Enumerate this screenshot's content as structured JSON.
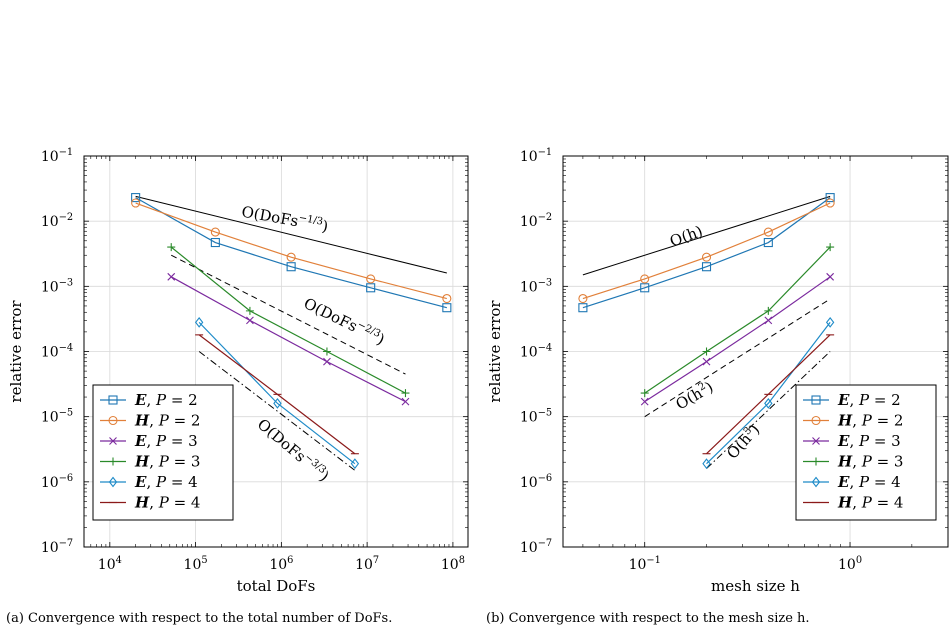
{
  "chart_data": [
    {
      "panel": "(a)",
      "type": "line",
      "xlabel": "total DoFs",
      "ylabel": "relative error",
      "xscale": "log",
      "yscale": "log",
      "xlim": [
        5000,
        150000000
      ],
      "ylim": [
        1e-07,
        0.1
      ],
      "xticks": [
        {
          "v": 10000.0,
          "b": "10",
          "e": "4"
        },
        {
          "v": 100000.0,
          "b": "10",
          "e": "5"
        },
        {
          "v": 1000000.0,
          "b": "10",
          "e": "6"
        },
        {
          "v": 10000000.0,
          "b": "10",
          "e": "7"
        },
        {
          "v": 100000000.0,
          "b": "10",
          "e": "8"
        }
      ],
      "yticks": [
        {
          "v": 1e-07,
          "b": "10",
          "e": "−7"
        },
        {
          "v": 1e-06,
          "b": "10",
          "e": "−6"
        },
        {
          "v": 1e-05,
          "b": "10",
          "e": "−5"
        },
        {
          "v": 0.0001,
          "b": "10",
          "e": "−4"
        },
        {
          "v": 0.001,
          "b": "10",
          "e": "−3"
        },
        {
          "v": 0.01,
          "b": "10",
          "e": "−2"
        },
        {
          "v": 0.1,
          "b": "10",
          "e": "−1"
        }
      ],
      "grid": true,
      "legend_position": "bottom-left",
      "series": [
        {
          "name": "E, P = 2",
          "field": "E",
          "p": "2",
          "color": "#1f77b4",
          "marker": "square",
          "x": [
            20000,
            170000,
            1300000,
            11000000,
            85000000
          ],
          "y": [
            0.023,
            0.0047,
            0.002,
            0.00095,
            0.00047
          ]
        },
        {
          "name": "H, P = 2",
          "field": "H",
          "p": "2",
          "color": "#e1803a",
          "marker": "circle",
          "x": [
            20000,
            170000,
            1300000,
            11000000,
            85000000
          ],
          "y": [
            0.019,
            0.0068,
            0.0028,
            0.0013,
            0.00065
          ]
        },
        {
          "name": "E, P = 3",
          "field": "E",
          "p": "3",
          "color": "#7b2a9e",
          "marker": "x",
          "x": [
            52000,
            430000,
            3400000,
            28000000
          ],
          "y": [
            0.0014,
            0.0003,
            7e-05,
            1.7e-05
          ]
        },
        {
          "name": "H, P = 3",
          "field": "H",
          "p": "3",
          "color": "#2a8a2a",
          "marker": "plus",
          "x": [
            52000,
            430000,
            3400000,
            28000000
          ],
          "y": [
            0.004,
            0.00042,
            0.0001,
            2.3e-05
          ]
        },
        {
          "name": "E, P = 4",
          "field": "E",
          "p": "4",
          "color": "#1f8bc8",
          "marker": "diamond",
          "x": [
            110000,
            900000,
            7200000
          ],
          "y": [
            0.00028,
            1.6e-05,
            1.9e-06
          ]
        },
        {
          "name": "H, P = 4",
          "field": "H",
          "p": "4",
          "color": "#8b1a1a",
          "marker": "dash",
          "x": [
            110000,
            900000,
            7200000
          ],
          "y": [
            0.00018,
            2.2e-05,
            2.7e-06
          ]
        }
      ],
      "reference_lines": [
        {
          "label": "O(DoFs^-1/3)",
          "style": "solid",
          "x": [
            20000,
            85000000
          ],
          "y": [
            0.024,
            0.0016
          ]
        },
        {
          "label": "O(DoFs^-2/3)",
          "style": "dashed",
          "x": [
            52000,
            28000000
          ],
          "y": [
            0.003,
            4.5e-05
          ]
        },
        {
          "label": "O(DoFs^-3/3)",
          "style": "dashdot",
          "x": [
            110000,
            7200000
          ],
          "y": [
            0.0001,
            1.5e-06
          ]
        }
      ],
      "annotations": [
        {
          "pre": "O(DoFs",
          "sup": "−1/3",
          "post": ")"
        },
        {
          "pre": "O(DoFs",
          "sup": "−2/3",
          "post": ")"
        },
        {
          "pre": "O(DoFs",
          "sup": "−3/3",
          "post": ")"
        }
      ]
    },
    {
      "panel": "(b)",
      "type": "line",
      "xlabel": "mesh size h",
      "ylabel": "relative error",
      "xscale": "log",
      "yscale": "log",
      "xlim": [
        0.04,
        3
      ],
      "ylim": [
        1e-07,
        0.1
      ],
      "xticks": [
        {
          "v": 0.1,
          "b": "10",
          "e": "−1"
        },
        {
          "v": 1,
          "b": "10",
          "e": "0"
        }
      ],
      "yticks": [
        {
          "v": 1e-07,
          "b": "10",
          "e": "−7"
        },
        {
          "v": 1e-06,
          "b": "10",
          "e": "−6"
        },
        {
          "v": 1e-05,
          "b": "10",
          "e": "−5"
        },
        {
          "v": 0.0001,
          "b": "10",
          "e": "−4"
        },
        {
          "v": 0.001,
          "b": "10",
          "e": "−3"
        },
        {
          "v": 0.01,
          "b": "10",
          "e": "−2"
        },
        {
          "v": 0.1,
          "b": "10",
          "e": "−1"
        }
      ],
      "grid": true,
      "legend_position": "bottom-right",
      "series": [
        {
          "name": "E, P = 2",
          "field": "E",
          "p": "2",
          "color": "#1f77b4",
          "marker": "square",
          "x": [
            0.05,
            0.1,
            0.2,
            0.4,
            0.8
          ],
          "y": [
            0.00047,
            0.00095,
            0.002,
            0.0047,
            0.023
          ]
        },
        {
          "name": "H, P = 2",
          "field": "H",
          "p": "2",
          "color": "#e1803a",
          "marker": "circle",
          "x": [
            0.05,
            0.1,
            0.2,
            0.4,
            0.8
          ],
          "y": [
            0.00065,
            0.0013,
            0.0028,
            0.0068,
            0.019
          ]
        },
        {
          "name": "E, P = 3",
          "field": "E",
          "p": "3",
          "color": "#7b2a9e",
          "marker": "x",
          "x": [
            0.1,
            0.2,
            0.4,
            0.8
          ],
          "y": [
            1.7e-05,
            7e-05,
            0.0003,
            0.0014
          ]
        },
        {
          "name": "H, P = 3",
          "field": "H",
          "p": "3",
          "color": "#2a8a2a",
          "marker": "plus",
          "x": [
            0.1,
            0.2,
            0.4,
            0.8
          ],
          "y": [
            2.3e-05,
            0.0001,
            0.00042,
            0.004
          ]
        },
        {
          "name": "E, P = 4",
          "field": "E",
          "p": "4",
          "color": "#1f8bc8",
          "marker": "diamond",
          "x": [
            0.2,
            0.4,
            0.8
          ],
          "y": [
            1.9e-06,
            1.6e-05,
            0.00028
          ]
        },
        {
          "name": "H, P = 4",
          "field": "H",
          "p": "4",
          "color": "#8b1a1a",
          "marker": "dash",
          "x": [
            0.2,
            0.4,
            0.8
          ],
          "y": [
            2.7e-06,
            2.2e-05,
            0.00018
          ]
        }
      ],
      "reference_lines": [
        {
          "label": "O(h)",
          "style": "solid",
          "x": [
            0.05,
            0.8
          ],
          "y": [
            0.0015,
            0.024
          ]
        },
        {
          "label": "O(h^2)",
          "style": "dashed",
          "x": [
            0.1,
            0.8
          ],
          "y": [
            1e-05,
            0.00064
          ]
        },
        {
          "label": "O(h^3)",
          "style": "dashdot",
          "x": [
            0.2,
            0.8
          ],
          "y": [
            1.6e-06,
            0.0001
          ]
        }
      ],
      "annotations": [
        {
          "pre": "O(h)",
          "sup": "",
          "post": ""
        },
        {
          "pre": "O(h",
          "sup": "2",
          "post": ")"
        },
        {
          "pre": "O(h",
          "sup": "3",
          "post": ")"
        }
      ]
    }
  ],
  "captions": {
    "a": "(a) Convergence with respect to the total number of DoFs.",
    "b": "(b) Convergence with respect to the mesh size h."
  }
}
